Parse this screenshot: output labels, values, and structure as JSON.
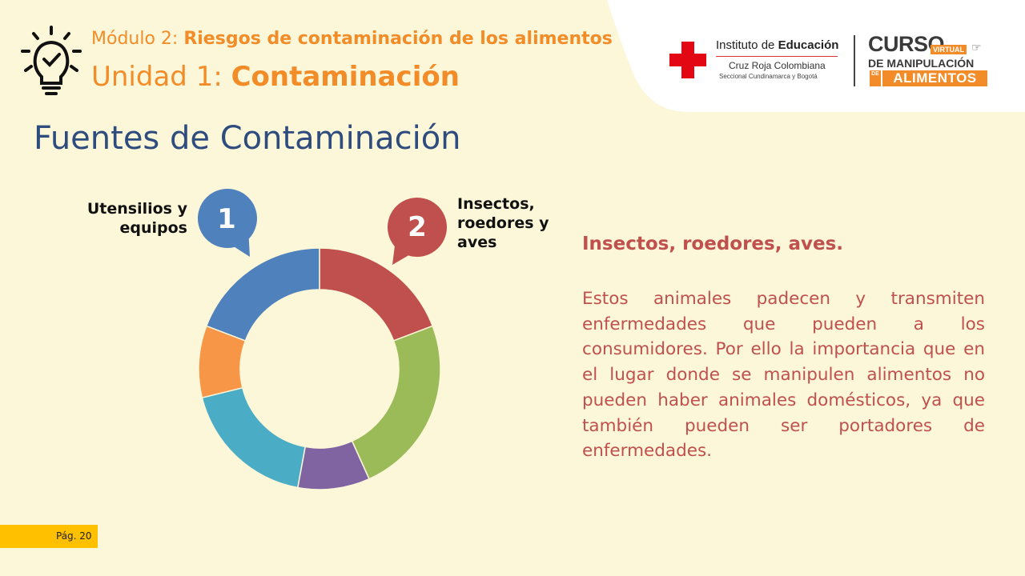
{
  "header": {
    "module_prefix": "Módulo 2: ",
    "module_title": "Riesgos de contaminación de los alimentos",
    "unit_prefix": "Unidad 1: ",
    "unit_title": "Contaminación"
  },
  "logo": {
    "institute_prefix": "Instituto de ",
    "institute_bold": "Educación",
    "org": "Cruz Roja Colombiana",
    "seccional": "Seccional Cundinamarca y Bogotá",
    "curso": "CURSO",
    "virtual": "VIRTUAL",
    "de_manipulacion": "DE MANIPULACIÓN",
    "de": "DE",
    "alimentos": "ALIMENTOS"
  },
  "section_title": "Fuentes de Contaminación",
  "chart_data": {
    "type": "pie",
    "style": "donut",
    "segments": [
      {
        "label": "",
        "value": 20,
        "color": "#C0504D"
      },
      {
        "label": "",
        "value": 25,
        "color": "#9BBB59"
      },
      {
        "label": "",
        "value": 10,
        "color": "#8064A2"
      },
      {
        "label": "",
        "value": 19,
        "color": "#4BACC6"
      },
      {
        "label": "",
        "value": 10,
        "color": "#F79646"
      },
      {
        "label": "",
        "value": 20,
        "color": "#4F81BD"
      }
    ]
  },
  "callouts": [
    {
      "number": "1",
      "label": "Utensilios y equipos",
      "color": "#4F81BD"
    },
    {
      "number": "2",
      "label": "Insectos, roedores y aves",
      "color": "#C0504D"
    }
  ],
  "description": {
    "title": "Insectos, roedores, aves.",
    "body": "Estos animales padecen y transmiten enfermedades que pueden a los consumidores. Por ello la importancia que en el lugar donde se manipulen alimentos no pueden haber animales domésticos, ya que también pueden ser portadores de enfermedades."
  },
  "page": {
    "label": "Pág. 20"
  },
  "colors": {
    "background": "#FDF7D9",
    "accent_orange": "#F28C28",
    "title_blue": "#2E4C7D",
    "text_red": "#C0504D",
    "badge_yellow": "#FFC000"
  },
  "icons": {
    "header": "lightbulb-check-icon",
    "logo_mark": "red-cross-icon"
  }
}
